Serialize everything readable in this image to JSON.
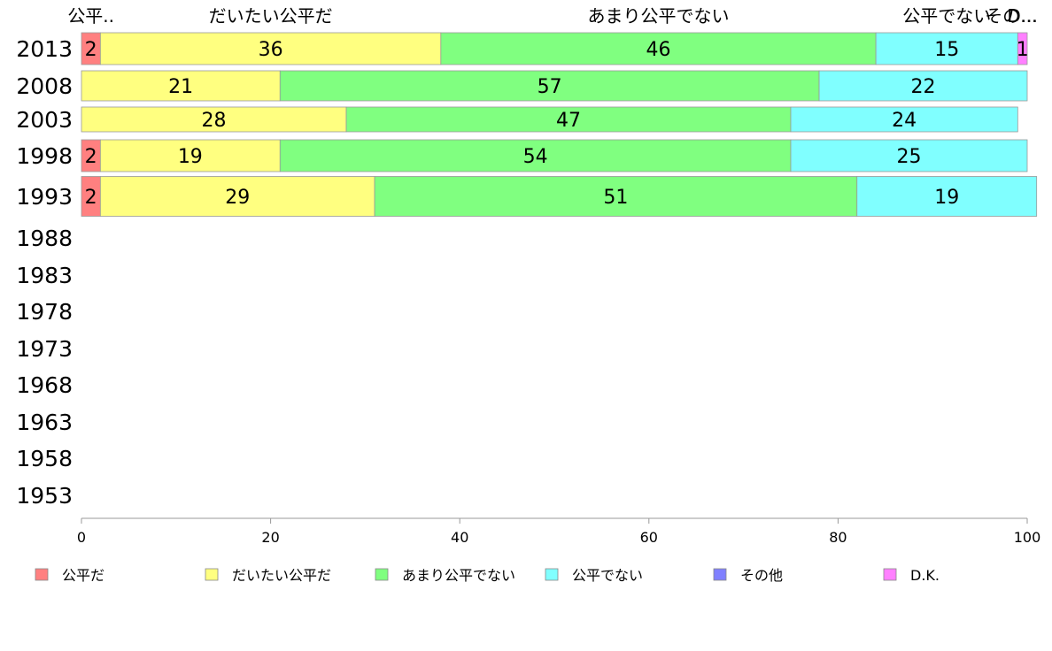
{
  "chart_data": {
    "type": "bar",
    "orientation": "horizontal-stacked",
    "categories": [
      "2013",
      "2008",
      "2003",
      "1998",
      "1993",
      "1988",
      "1983",
      "1978",
      "1973",
      "1968",
      "1963",
      "1958",
      "1953"
    ],
    "series": [
      {
        "name": "公平だ",
        "color": "#ff8080",
        "values": [
          2,
          0,
          0,
          2,
          2,
          0,
          0,
          0,
          0,
          0,
          0,
          0,
          0
        ]
      },
      {
        "name": "だいたい公平だ",
        "color": "#ffff80",
        "values": [
          36,
          21,
          28,
          19,
          29,
          0,
          0,
          0,
          0,
          0,
          0,
          0,
          0
        ]
      },
      {
        "name": "あまり公平でない",
        "color": "#80ff80",
        "values": [
          46,
          57,
          47,
          54,
          51,
          0,
          0,
          0,
          0,
          0,
          0,
          0,
          0
        ]
      },
      {
        "name": "公平でない",
        "color": "#80ffff",
        "values": [
          15,
          22,
          24,
          25,
          19,
          0,
          0,
          0,
          0,
          0,
          0,
          0,
          0
        ]
      },
      {
        "name": "その他",
        "color": "#8080ff",
        "values": [
          0,
          0,
          0,
          0,
          0,
          0,
          0,
          0,
          0,
          0,
          0,
          0,
          0
        ]
      },
      {
        "name": "D.K.",
        "color": "#ff80ff",
        "values": [
          1,
          0,
          0,
          0,
          0,
          0,
          0,
          0,
          0,
          0,
          0,
          0,
          0
        ]
      }
    ],
    "top_labels": [
      "公平..",
      "だいたい公平だ",
      "あまり公平でない",
      "公平でない",
      "その...",
      "D..."
    ],
    "xlim": [
      0,
      100
    ],
    "xticks": [
      0,
      20,
      40,
      60,
      80,
      100
    ],
    "title": "",
    "xlabel": "",
    "ylabel": "",
    "legend_position": "bottom",
    "grid": false
  }
}
